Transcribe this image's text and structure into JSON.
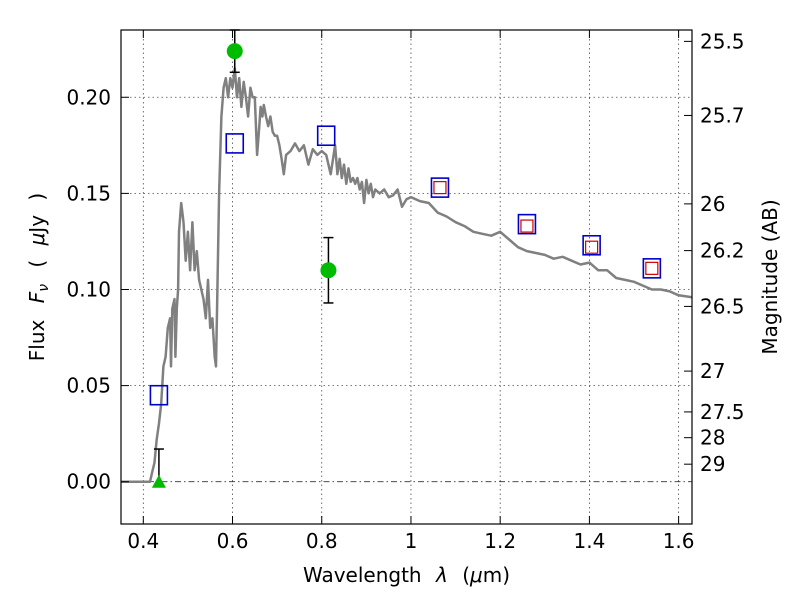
{
  "chart_data": {
    "type": "scatter",
    "xlabel_parts": [
      "Wavelength",
      "λ",
      "(",
      "μ",
      "m)"
    ],
    "ylabel_parts": [
      "Flux",
      "F",
      "ν",
      "(",
      "μ",
      "Jy",
      ")"
    ],
    "y2label": "Magnitude (AB)",
    "xlim": [
      0.35,
      1.63
    ],
    "ylim": [
      -0.022,
      0.235
    ],
    "grid": true,
    "x_ticks": [
      {
        "value": 0.4,
        "label": "0.4"
      },
      {
        "value": 0.6,
        "label": "0.6"
      },
      {
        "value": 0.8,
        "label": "0.8"
      },
      {
        "value": 1.0,
        "label": "1"
      },
      {
        "value": 1.2,
        "label": "1.2"
      },
      {
        "value": 1.4,
        "label": "1.4"
      },
      {
        "value": 1.6,
        "label": "1.6"
      }
    ],
    "y_ticks": [
      {
        "value": 0.0,
        "label": "0.00"
      },
      {
        "value": 0.05,
        "label": "0.05"
      },
      {
        "value": 0.1,
        "label": "0.10"
      },
      {
        "value": 0.15,
        "label": "0.15"
      },
      {
        "value": 0.2,
        "label": "0.20"
      }
    ],
    "mag_ticks": [
      {
        "mag": 25.5,
        "label": "25.5"
      },
      {
        "mag": 25.7,
        "label": "25.7"
      },
      {
        "mag": 26,
        "label": "26"
      },
      {
        "mag": 26.2,
        "label": "26.2"
      },
      {
        "mag": 26.5,
        "label": "26.5"
      },
      {
        "mag": 27,
        "label": "27"
      },
      {
        "mag": 27.5,
        "label": "27.5"
      },
      {
        "mag": 28,
        "label": "28"
      },
      {
        "mag": 29,
        "label": "29"
      }
    ],
    "sed_model": {
      "color": "#808080",
      "x": [
        0.35,
        0.415,
        0.42,
        0.425,
        0.43,
        0.435,
        0.44,
        0.445,
        0.45,
        0.455,
        0.46,
        0.462,
        0.465,
        0.47,
        0.472,
        0.475,
        0.478,
        0.48,
        0.485,
        0.49,
        0.495,
        0.5,
        0.505,
        0.51,
        0.515,
        0.52,
        0.525,
        0.53,
        0.535,
        0.54,
        0.545,
        0.55,
        0.555,
        0.56,
        0.563,
        0.566,
        0.57,
        0.575,
        0.58,
        0.585,
        0.59,
        0.595,
        0.6,
        0.605,
        0.61,
        0.615,
        0.62,
        0.625,
        0.63,
        0.635,
        0.64,
        0.645,
        0.65,
        0.655,
        0.66,
        0.663,
        0.667,
        0.67,
        0.675,
        0.68,
        0.685,
        0.69,
        0.695,
        0.7,
        0.705,
        0.71,
        0.715,
        0.72,
        0.73,
        0.74,
        0.75,
        0.76,
        0.77,
        0.78,
        0.79,
        0.8,
        0.81,
        0.82,
        0.83,
        0.835,
        0.84,
        0.845,
        0.85,
        0.855,
        0.86,
        0.865,
        0.87,
        0.875,
        0.88,
        0.885,
        0.89,
        0.895,
        0.9,
        0.905,
        0.91,
        0.915,
        0.92,
        0.93,
        0.94,
        0.95,
        0.96,
        0.97,
        0.98,
        0.99,
        1.0,
        1.02,
        1.04,
        1.06,
        1.08,
        1.1,
        1.12,
        1.14,
        1.16,
        1.18,
        1.2,
        1.22,
        1.24,
        1.26,
        1.28,
        1.3,
        1.32,
        1.34,
        1.36,
        1.38,
        1.4,
        1.42,
        1.44,
        1.46,
        1.48,
        1.5,
        1.52,
        1.54,
        1.56,
        1.58,
        1.6,
        1.63
      ],
      "y": [
        0.0,
        0.0,
        0.005,
        0.01,
        0.022,
        0.03,
        0.04,
        0.06,
        0.065,
        0.08,
        0.085,
        0.06,
        0.09,
        0.095,
        0.065,
        0.09,
        0.1,
        0.13,
        0.145,
        0.135,
        0.115,
        0.13,
        0.11,
        0.135,
        0.11,
        0.12,
        0.105,
        0.1,
        0.095,
        0.085,
        0.105,
        0.08,
        0.085,
        0.065,
        0.06,
        0.1,
        0.15,
        0.19,
        0.205,
        0.21,
        0.2,
        0.21,
        0.205,
        0.215,
        0.2,
        0.21,
        0.195,
        0.208,
        0.2,
        0.19,
        0.205,
        0.2,
        0.2,
        0.17,
        0.185,
        0.195,
        0.19,
        0.196,
        0.19,
        0.185,
        0.19,
        0.182,
        0.18,
        0.18,
        0.175,
        0.168,
        0.16,
        0.17,
        0.172,
        0.176,
        0.172,
        0.175,
        0.165,
        0.173,
        0.17,
        0.172,
        0.17,
        0.16,
        0.175,
        0.16,
        0.168,
        0.158,
        0.165,
        0.155,
        0.163,
        0.156,
        0.158,
        0.155,
        0.158,
        0.152,
        0.156,
        0.145,
        0.157,
        0.15,
        0.155,
        0.148,
        0.152,
        0.15,
        0.152,
        0.148,
        0.149,
        0.152,
        0.143,
        0.147,
        0.148,
        0.146,
        0.145,
        0.14,
        0.138,
        0.135,
        0.133,
        0.13,
        0.129,
        0.128,
        0.13,
        0.126,
        0.122,
        0.12,
        0.119,
        0.118,
        0.116,
        0.117,
        0.115,
        0.113,
        0.114,
        0.11,
        0.11,
        0.106,
        0.105,
        0.104,
        0.102,
        0.1,
        0.1,
        0.099,
        0.097,
        0.096
      ]
    },
    "model_photometry": {
      "color": "#0000cc",
      "marker": "open-square",
      "x": [
        0.435,
        0.605,
        0.81,
        1.065,
        1.26,
        1.405,
        1.54
      ],
      "y": [
        0.045,
        0.176,
        0.18,
        0.153,
        0.134,
        0.123,
        0.111
      ]
    },
    "model_photometry_small": {
      "color": "#cc0000",
      "marker": "open-square-small",
      "x": [
        1.065,
        1.26,
        1.405,
        1.54
      ],
      "y": [
        0.153,
        0.133,
        0.122,
        0.111
      ]
    },
    "observed_photometry": {
      "color": "#00bb00",
      "marker": "circle",
      "points": [
        {
          "x": 0.605,
          "y": 0.224,
          "yerr_low": 0.213,
          "yerr_high": 0.235
        },
        {
          "x": 0.815,
          "y": 0.11,
          "yerr_low": 0.093,
          "yerr_high": 0.127
        }
      ]
    },
    "upper_limits": {
      "color": "#00bb00",
      "marker": "triangle",
      "points": [
        {
          "x": 0.435,
          "y": 0.0,
          "yerr_low": -0.002,
          "yerr_high": 0.017
        }
      ]
    }
  }
}
